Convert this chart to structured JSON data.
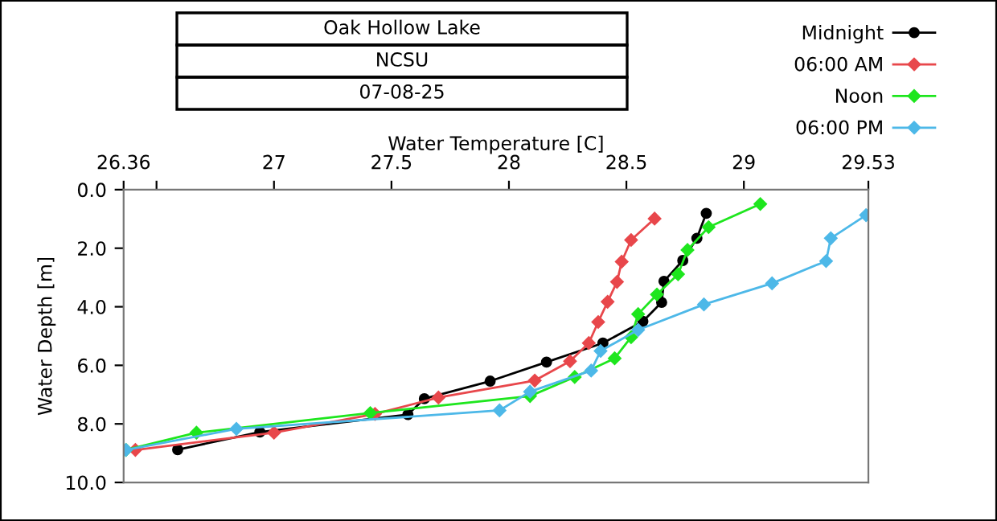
{
  "chart_data": {
    "type": "line",
    "title": "Oak Hollow Lake",
    "subtitle": "NCSU",
    "annotations": [
      "07-08-25"
    ],
    "xlabel": "Water Temperature [C]",
    "ylabel": "Water Depth [m]",
    "xlim": [
      26.36,
      29.53
    ],
    "xticks": [
      26.36,
      {
        "value": 26.5,
        "label": null
      },
      27,
      27.5,
      28,
      28.5,
      29,
      29.53
    ],
    "ylim": [
      10.0,
      0.0
    ],
    "yticks": [
      {
        "value": 0,
        "label": "0.0"
      },
      {
        "value": 2,
        "label": "2.0"
      },
      {
        "value": 4,
        "label": "4.0"
      },
      {
        "value": 6,
        "label": "6.0"
      },
      {
        "value": 8,
        "label": "8.0"
      },
      {
        "value": 10,
        "label": "10.0"
      }
    ],
    "legend": "top right",
    "grid": false,
    "series": [
      {
        "name": "Midnight",
        "color": "#000000",
        "marker": "circle",
        "x": [
          28.84,
          28.8,
          28.74,
          28.66,
          28.65,
          28.57,
          28.4,
          28.16,
          27.92,
          27.64,
          27.57,
          26.94,
          26.59
        ],
        "values": [
          0.81,
          1.66,
          2.42,
          3.13,
          3.85,
          4.5,
          5.24,
          5.89,
          6.54,
          7.14,
          7.68,
          8.28,
          8.88
        ]
      },
      {
        "name": "06:00 AM",
        "color": "#e8474b",
        "marker": "diamond",
        "x": [
          28.62,
          28.52,
          28.48,
          28.46,
          28.42,
          28.38,
          28.34,
          28.26,
          28.11,
          27.7,
          27.43,
          27.0,
          26.41
        ],
        "values": [
          0.99,
          1.72,
          2.46,
          3.15,
          3.83,
          4.52,
          5.24,
          5.86,
          6.52,
          7.1,
          7.66,
          8.3,
          8.89
        ]
      },
      {
        "name": "Noon",
        "color": "#1ee61e",
        "marker": "diamond",
        "x": [
          29.07,
          28.85,
          28.76,
          28.72,
          28.63,
          28.55,
          28.52,
          28.45,
          28.28,
          28.09,
          27.41,
          26.67,
          26.37
        ],
        "values": [
          0.49,
          1.28,
          2.06,
          2.89,
          3.58,
          4.25,
          5.04,
          5.76,
          6.4,
          7.05,
          7.63,
          8.3,
          8.89
        ]
      },
      {
        "name": "06:00 PM",
        "color": "#4db8e8",
        "marker": "diamond",
        "x": [
          29.52,
          29.37,
          29.35,
          29.12,
          28.83,
          28.55,
          28.39,
          28.35,
          28.09,
          27.96,
          26.84,
          26.37
        ],
        "values": [
          0.87,
          1.66,
          2.44,
          3.2,
          3.92,
          4.79,
          5.51,
          6.18,
          6.9,
          7.54,
          8.17,
          8.89
        ]
      }
    ]
  }
}
